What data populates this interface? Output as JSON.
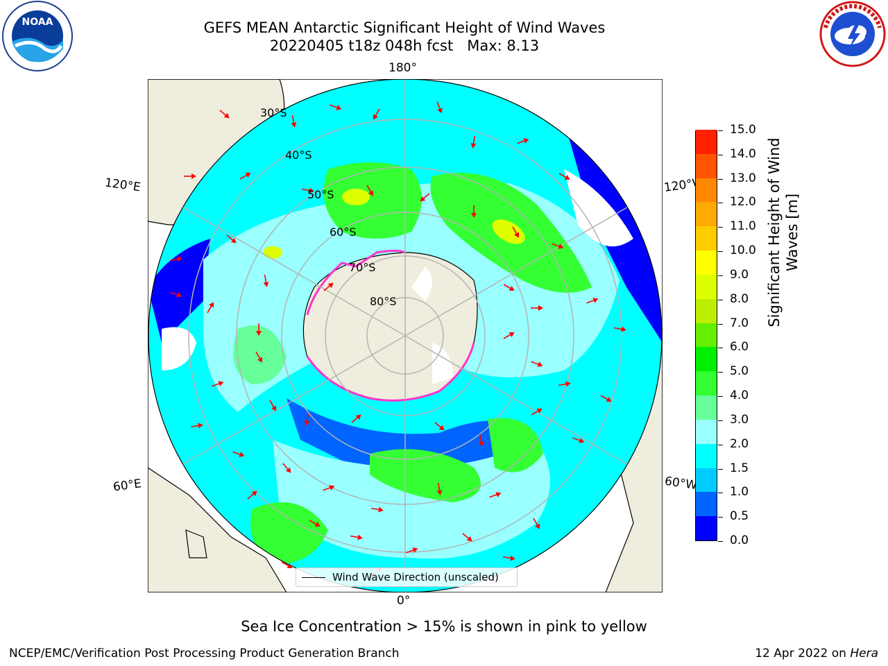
{
  "title": {
    "line1": "GEFS MEAN Antarctic Significant Height of Wind Waves",
    "line2": "20220405 t18z 048h fcst   Max: 8.13"
  },
  "logos": {
    "left": {
      "icon": "noaa-logo-icon",
      "text": "NOAA",
      "ring_text": "NATIONAL OCEANIC AND ATMOSPHERIC ADMINISTRATION · U.S. DEPARTMENT OF COMMERCE"
    },
    "right": {
      "icon": "nws-logo-icon",
      "ring_text": "NATIONAL WEATHER SERVICE"
    }
  },
  "map": {
    "longitude_labels": {
      "top": "180°",
      "bottom": "0°",
      "upper_left": "120°E",
      "upper_right": "120°W",
      "lower_left": "60°E",
      "lower_right": "60°W"
    },
    "latitude_labels": [
      "30°S",
      "40°S",
      "50°S",
      "60°S",
      "70°S",
      "80°S"
    ],
    "colors": {
      "land": "#efedde",
      "antarctica": "#efedde",
      "gridline": "#b4b4b4",
      "arrow": "#ff0000",
      "ice_edge": "#ff33cc"
    }
  },
  "colorbar": {
    "title": "Significant Height of Wind Waves [m]",
    "ticks": [
      "0.0",
      "0.5",
      "1.0",
      "1.5",
      "2.0",
      "3.0",
      "4.0",
      "5.0",
      "6.0",
      "7.0",
      "8.0",
      "9.0",
      "10.0",
      "11.0",
      "12.0",
      "13.0",
      "14.0",
      "15.0"
    ],
    "colors": [
      "#0000ff",
      "#0064ff",
      "#00ccff",
      "#00ffff",
      "#99ffff",
      "#66ff99",
      "#33ff33",
      "#00ee00",
      "#66ee00",
      "#bbee00",
      "#ddff00",
      "#ffff00",
      "#ffcc00",
      "#ffaa00",
      "#ff8800",
      "#ff5500",
      "#ff2200"
    ]
  },
  "legend": {
    "label": "Wind Wave Direction (unscaled)"
  },
  "notes": {
    "ice": "Sea Ice Concentration > 15% is shown in pink to yellow",
    "footer_left": "NCEP/EMC/Verification Post Processing Product Generation Branch",
    "footer_date": "12 Apr 2022 on ",
    "footer_machine": "Hera"
  }
}
